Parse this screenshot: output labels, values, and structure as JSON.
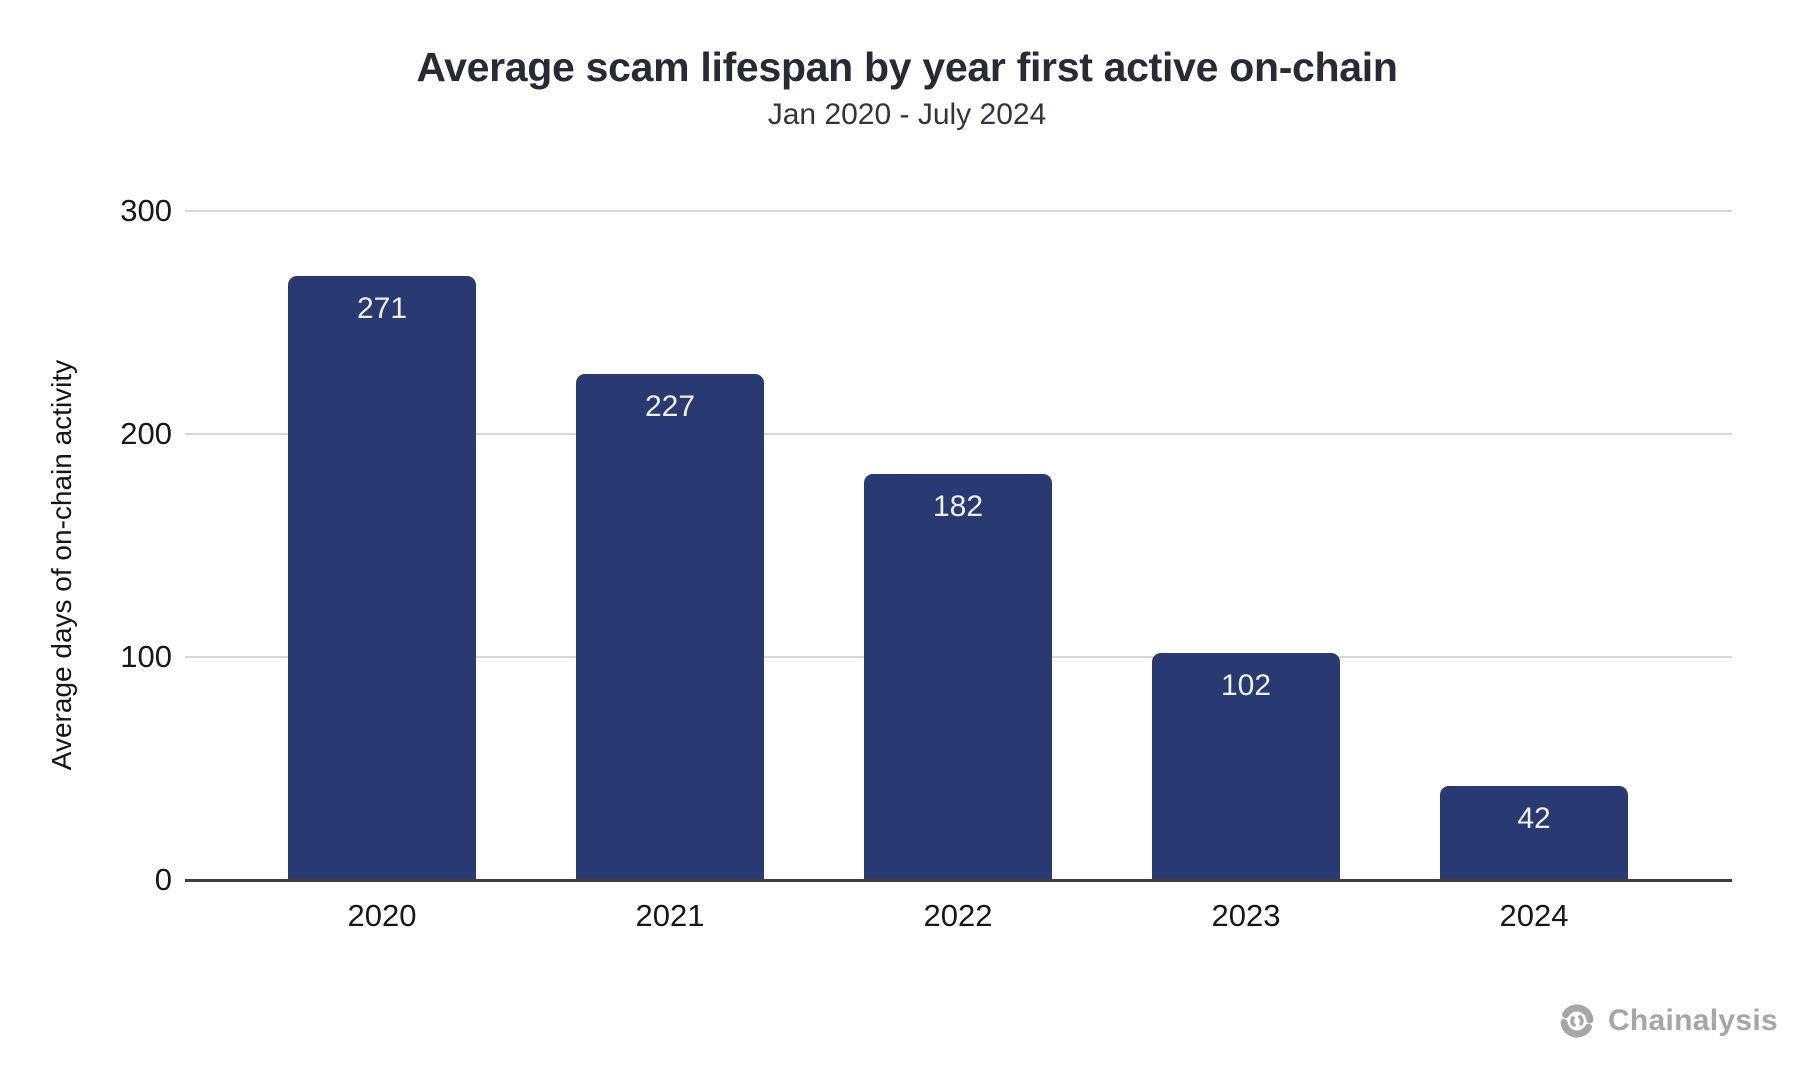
{
  "header": {
    "title": "Average scam lifespan by year first active on-chain",
    "subtitle": "Jan 2020 - July 2024"
  },
  "chart_data": {
    "type": "bar",
    "title": "Average scam lifespan by year first active on-chain",
    "subtitle": "Jan 2020 - July 2024",
    "categories": [
      "2020",
      "2021",
      "2022",
      "2023",
      "2024"
    ],
    "values": [
      271,
      227,
      182,
      102,
      42
    ],
    "xlabel": "",
    "ylabel": "Average days of on-chain activity",
    "ylim": [
      0,
      300
    ],
    "yticks": [
      0,
      100,
      200,
      300
    ],
    "grid": "horizontal-only",
    "legend": "none",
    "bar_color": "#293A72",
    "value_label_color": "#EEF0F6",
    "gridline_color": "#D7D7D9",
    "baseline_color": "#3E3E40"
  },
  "branding": {
    "logo_text": "Chainalysis",
    "logo_icon": "chainalysis-knot-icon",
    "color": "#A6A6A6"
  }
}
